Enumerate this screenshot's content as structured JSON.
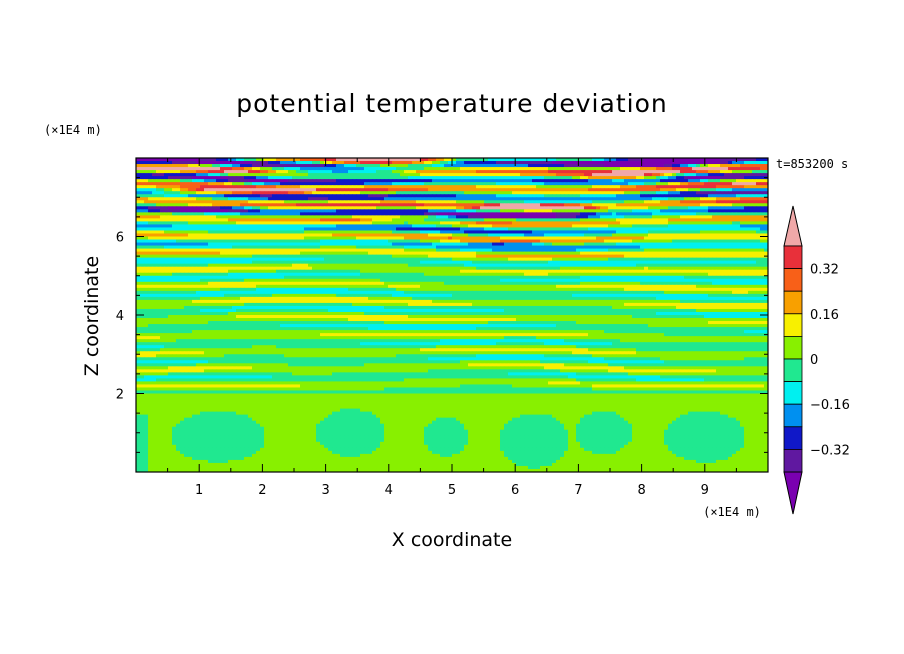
{
  "chart_data": {
    "type": "heatmap",
    "title": "potential temperature deviation",
    "xlabel": "X coordinate",
    "ylabel": "Z coordinate",
    "x_unit": "(×1E4 m)",
    "y_unit": "(×1E4 m)",
    "time_label": "t=853200 s",
    "xlim": [
      0,
      10
    ],
    "ylim": [
      0,
      8
    ],
    "xticks": [
      "1",
      "2",
      "3",
      "4",
      "5",
      "6",
      "7",
      "8",
      "9"
    ],
    "yticks": [
      "2",
      "4",
      "6"
    ],
    "colorbar": {
      "levels": [
        -0.4,
        -0.32,
        -0.24,
        -0.16,
        -0.08,
        0,
        0.08,
        0.16,
        0.24,
        0.32,
        0.4
      ],
      "labels": [
        "0.32",
        "0.16",
        "0",
        "−0.16",
        "−0.32"
      ],
      "label_values": [
        0.32,
        0.16,
        0,
        -0.16,
        -0.32
      ],
      "colors_top_to_bottom": [
        "#f0a8a8",
        "#e8303a",
        "#f86018",
        "#f8a000",
        "#f8f000",
        "#88f000",
        "#20e890",
        "#00f0f0",
        "#0090f0",
        "#1018c8",
        "#6018a0",
        "#7a00b0"
      ]
    },
    "features": [
      {
        "desc": "boundary layer with large convective cells",
        "z_range": [
          0,
          2
        ],
        "value_range": [
          -0.08,
          0.08
        ]
      },
      {
        "desc": "layered gravity-wave bands, weak",
        "z_range": [
          2,
          5.5
        ],
        "value_range": [
          -0.16,
          0.16
        ]
      },
      {
        "desc": "strong alternating bands near top",
        "z_range": [
          5.5,
          8
        ],
        "value_range": [
          -0.4,
          0.4
        ]
      }
    ]
  }
}
